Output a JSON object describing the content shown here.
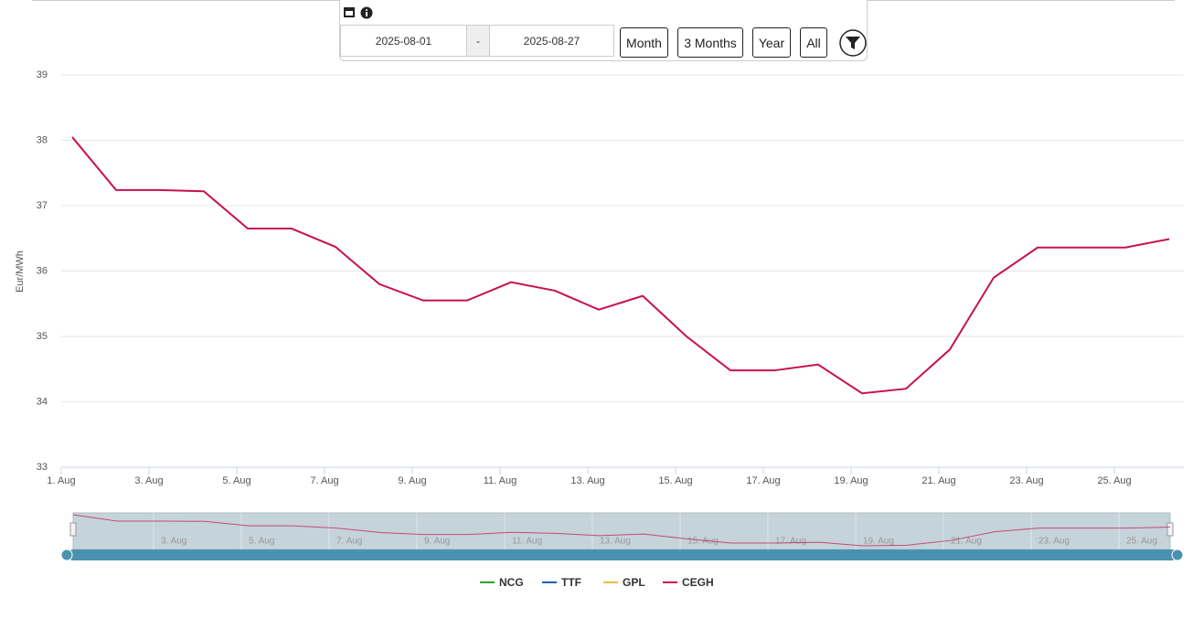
{
  "toolbar": {
    "date_from": "2025-08-01",
    "separator": "-",
    "date_to": "2025-08-27",
    "buttons": [
      "Month",
      "3 Months",
      "Year",
      "All"
    ]
  },
  "chart_data": {
    "type": "line",
    "y_label": "Eur/MWh",
    "categories": [
      "1. Aug",
      null,
      "3. Aug",
      null,
      "5. Aug",
      null,
      "7. Aug",
      null,
      "9. Aug",
      null,
      "11. Aug",
      null,
      "13. Aug",
      null,
      "15. Aug",
      null,
      "17. Aug",
      null,
      "19. Aug",
      null,
      "21. Aug",
      null,
      "23. Aug",
      null,
      "25. Aug",
      null
    ],
    "series": [
      {
        "name": "NCG",
        "color": "#2ca02c",
        "values": [
          null,
          null,
          null,
          null,
          null,
          null,
          null,
          null,
          null,
          null,
          null,
          null,
          null,
          null,
          null,
          null,
          null,
          null,
          null,
          null,
          null,
          null,
          null,
          null,
          null,
          null
        ]
      },
      {
        "name": "TTF",
        "color": "#1f5fa8",
        "values": [
          null,
          null,
          null,
          null,
          null,
          null,
          null,
          null,
          null,
          null,
          null,
          null,
          null,
          null,
          null,
          null,
          null,
          null,
          null,
          null,
          null,
          null,
          null,
          null,
          null,
          null
        ]
      },
      {
        "name": "GPL",
        "color": "#f5b942",
        "values": [
          null,
          null,
          null,
          null,
          null,
          null,
          null,
          null,
          null,
          null,
          null,
          null,
          null,
          null,
          null,
          null,
          null,
          null,
          null,
          null,
          null,
          null,
          null,
          null,
          null,
          null
        ]
      },
      {
        "name": "CEGH",
        "color": "#c8104e",
        "values": [
          38.05,
          37.24,
          37.24,
          37.22,
          36.65,
          36.65,
          36.37,
          35.8,
          35.55,
          35.55,
          35.83,
          35.7,
          35.41,
          35.62,
          35.0,
          34.48,
          34.48,
          34.57,
          34.13,
          34.2,
          34.8,
          35.9,
          36.36,
          36.36,
          36.36,
          36.49
        ]
      }
    ],
    "ylim": [
      33,
      39
    ],
    "yticks": [
      33,
      34,
      35,
      36,
      37,
      38,
      39
    ],
    "grid": true
  }
}
